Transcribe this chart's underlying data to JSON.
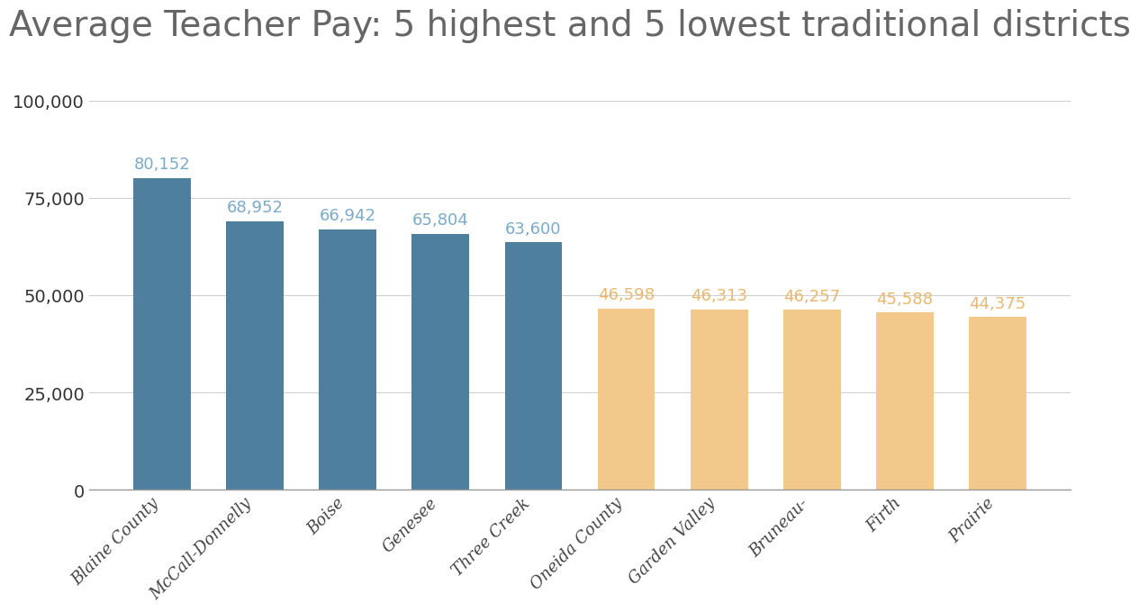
{
  "title": "Average Teacher Pay: 5 highest and 5 lowest traditional districts",
  "categories": [
    "Blaine County",
    "McCall-Donnelly",
    "Boise",
    "Genesee",
    "Three Creek",
    "Oneida County",
    "Garden Valley",
    "Bruneau-",
    "Firth",
    "Prairie"
  ],
  "values": [
    80152,
    68952,
    66942,
    65804,
    63600,
    46598,
    46313,
    46257,
    45588,
    44375
  ],
  "bar_colors": [
    "#4e7f9e",
    "#4e7f9e",
    "#4e7f9e",
    "#4e7f9e",
    "#4e7f9e",
    "#f2c98a",
    "#f2c98a",
    "#f2c98a",
    "#f2c98a",
    "#f2c98a"
  ],
  "label_colors": [
    "#7aabc8",
    "#7aabc8",
    "#7aabc8",
    "#7aabc8",
    "#7aabc8",
    "#e8b870",
    "#e8b870",
    "#e8b870",
    "#e8b870",
    "#e8b870"
  ],
  "ylim": [
    0,
    115000
  ],
  "yticks": [
    0,
    25000,
    50000,
    75000,
    100000
  ],
  "ytick_labels": [
    "0",
    "25,000",
    "50,000",
    "75,000",
    "100,000"
  ],
  "background_color": "#ffffff",
  "title_fontsize": 28,
  "bar_label_fontsize": 13,
  "tick_label_fontsize": 14,
  "xtick_label_fontsize": 13,
  "bar_width": 0.62
}
